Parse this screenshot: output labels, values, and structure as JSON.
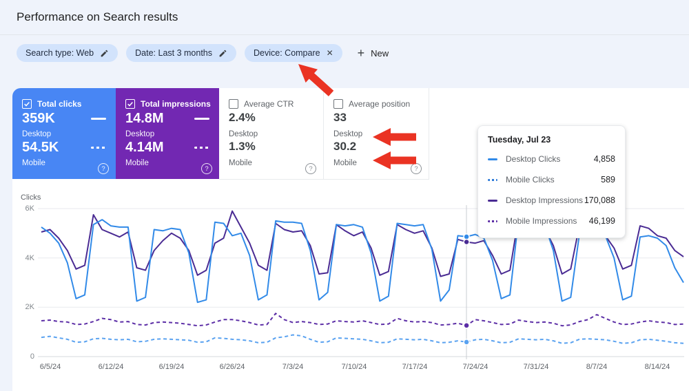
{
  "page": {
    "title": "Performance on Search results"
  },
  "icons": {
    "close": "✕",
    "plus": "+",
    "help": "?"
  },
  "filters": {
    "chips": [
      {
        "label": "Search type: Web",
        "action": "edit"
      },
      {
        "label": "Date: Last 3 months",
        "action": "edit"
      },
      {
        "label": "Device: Compare",
        "action": "remove"
      }
    ],
    "new_button": {
      "label": "New"
    }
  },
  "metrics": {
    "cards": [
      {
        "title": "Total clicks",
        "checked": true,
        "bg": "#4886f4",
        "desktop_value": "359K",
        "desktop_label": "Desktop",
        "mobile_value": "54.5K",
        "mobile_label": "Mobile"
      },
      {
        "title": "Total impressions",
        "checked": true,
        "bg": "#7228b2",
        "desktop_value": "14.8M",
        "desktop_label": "Desktop",
        "mobile_value": "4.14M",
        "mobile_label": "Mobile"
      },
      {
        "title": "Average CTR",
        "checked": false,
        "desktop_value": "2.4%",
        "desktop_label": "Desktop",
        "mobile_value": "1.3%",
        "mobile_label": "Mobile"
      },
      {
        "title": "Average position",
        "checked": false,
        "desktop_value": "33",
        "desktop_label": "Desktop",
        "mobile_value": "30.2",
        "mobile_label": "Mobile"
      }
    ]
  },
  "tooltip": {
    "date": "Tuesday, Jul 23",
    "rows": [
      {
        "label": "Desktop Clicks",
        "value": "4,858",
        "swatch_color": "#318ae8",
        "swatch_style": "solid"
      },
      {
        "label": "Mobile Clicks",
        "value": "589",
        "swatch_color": "#2f7bd9",
        "swatch_style": "dotted"
      },
      {
        "label": "Desktop Impressions",
        "value": "170,088",
        "swatch_color": "#4a2b93",
        "swatch_style": "solid"
      },
      {
        "label": "Mobile Impressions",
        "value": "46,199",
        "swatch_color": "#5c2ea6",
        "swatch_style": "dotted"
      }
    ]
  },
  "chart_data": {
    "type": "line",
    "title": "",
    "xlabel": "",
    "ylabel": "Clicks",
    "ylim": [
      0,
      6000
    ],
    "grid": true,
    "legend_position": "none (legend shown in hover tooltip)",
    "y_ticks": [
      "6K",
      "4K",
      "2K",
      "0"
    ],
    "x_tick_labels": [
      "6/5/24",
      "6/12/24",
      "6/19/24",
      "6/26/24",
      "7/3/24",
      "7/10/24",
      "7/17/24",
      "7/24/24",
      "7/31/24",
      "8/7/24",
      "8/14/24"
    ],
    "start_date": "6/4/24",
    "interval": "daily",
    "selected_index": 49,
    "selected_date": "Tuesday, Jul 23",
    "note": "Impressions series are plotted against a hidden axis; their values below are expressed in clicks-axis equivalent units (~36.6 impressions per unit; e.g. 170,088 desktop impressions ≈ 4647).",
    "series": [
      {
        "name": "Desktop Clicks",
        "color": "#318ae8",
        "dash": false,
        "values": [
          5250,
          5000,
          4600,
          3800,
          2350,
          2500,
          5350,
          5550,
          5300,
          5250,
          5250,
          2250,
          2400,
          5150,
          5100,
          5200,
          5150,
          4200,
          2200,
          2300,
          5450,
          5400,
          4900,
          5000,
          4100,
          2300,
          2500,
          5500,
          5450,
          5450,
          5400,
          4300,
          2300,
          2600,
          5350,
          5300,
          5350,
          5250,
          4200,
          2250,
          2450,
          5400,
          5350,
          5300,
          5350,
          4350,
          2250,
          2700,
          4900,
          4858,
          4950,
          4800,
          3900,
          2350,
          2500,
          5600,
          5300,
          5200,
          5350,
          4300,
          2250,
          2400,
          4950,
          5000,
          4950,
          4900,
          4000,
          2300,
          2450,
          4850,
          4900,
          4800,
          4500,
          3600,
          3000
        ]
      },
      {
        "name": "Mobile Clicks",
        "color": "#5aa2f0",
        "dash": true,
        "values": [
          780,
          820,
          760,
          700,
          580,
          600,
          720,
          740,
          700,
          680,
          700,
          600,
          620,
          700,
          720,
          700,
          680,
          660,
          580,
          600,
          760,
          740,
          700,
          680,
          640,
          560,
          580,
          760,
          800,
          880,
          840,
          700,
          580,
          600,
          760,
          740,
          720,
          700,
          640,
          560,
          580,
          720,
          700,
          680,
          700,
          640,
          560,
          580,
          640,
          589,
          680,
          700,
          640,
          560,
          580,
          720,
          700,
          680,
          700,
          640,
          540,
          560,
          700,
          720,
          700,
          680,
          620,
          540,
          560,
          680,
          700,
          660,
          620,
          560,
          540
        ]
      },
      {
        "name": "Desktop Impressions",
        "color": "#4a2b93",
        "dash": false,
        "values": [
          5050,
          5150,
          4800,
          4300,
          3550,
          3700,
          5750,
          5150,
          5000,
          4850,
          5050,
          3600,
          3500,
          4300,
          4700,
          5000,
          4800,
          4300,
          3300,
          3500,
          4600,
          4800,
          5900,
          5250,
          4600,
          3700,
          3500,
          5400,
          5150,
          5050,
          5100,
          4500,
          3350,
          3400,
          5350,
          5100,
          4900,
          5050,
          4400,
          3300,
          3450,
          5350,
          5150,
          5000,
          5100,
          4400,
          3250,
          3350,
          4750,
          4647,
          4600,
          4700,
          4100,
          3350,
          3500,
          5650,
          5350,
          5100,
          5200,
          4500,
          3350,
          3550,
          5300,
          5250,
          5050,
          4900,
          4400,
          3550,
          3700,
          5300,
          5200,
          4900,
          4800,
          4300,
          4050
        ]
      },
      {
        "name": "Mobile Impressions",
        "color": "#5c2ea6",
        "dash": true,
        "values": [
          1450,
          1480,
          1420,
          1400,
          1300,
          1320,
          1420,
          1550,
          1500,
          1400,
          1420,
          1300,
          1280,
          1380,
          1400,
          1380,
          1350,
          1300,
          1250,
          1280,
          1400,
          1500,
          1500,
          1450,
          1380,
          1280,
          1300,
          1750,
          1500,
          1380,
          1420,
          1380,
          1300,
          1320,
          1450,
          1420,
          1400,
          1450,
          1380,
          1300,
          1320,
          1550,
          1450,
          1400,
          1420,
          1380,
          1280,
          1300,
          1350,
          1262,
          1500,
          1450,
          1380,
          1300,
          1320,
          1480,
          1420,
          1380,
          1400,
          1350,
          1250,
          1280,
          1420,
          1500,
          1700,
          1550,
          1400,
          1300,
          1320,
          1400,
          1450,
          1400,
          1380,
          1300,
          1320
        ]
      }
    ]
  },
  "annotations": {
    "arrow_color": "#ea3323"
  }
}
